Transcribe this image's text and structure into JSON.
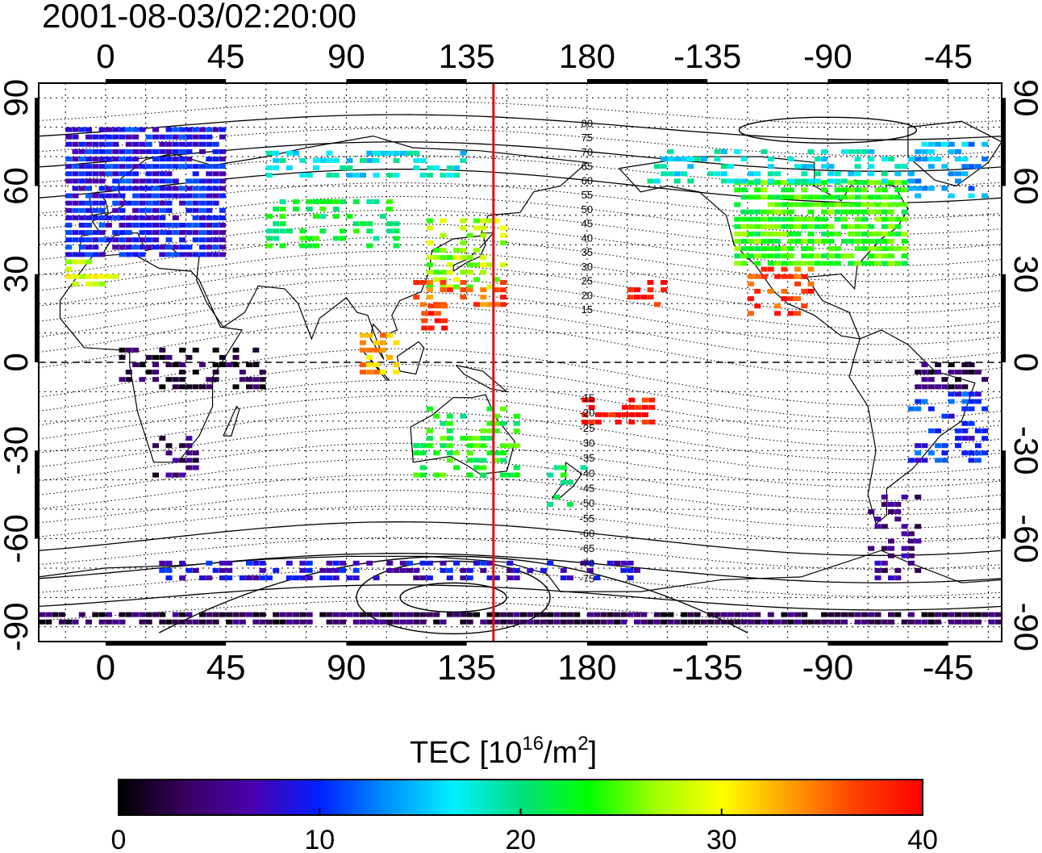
{
  "title": "2001-08-03/02:20:00",
  "map": {
    "lon_range": [
      -25,
      335
    ],
    "lat_range": [
      -95,
      95
    ],
    "top_lon_ticks": [
      "0",
      "45",
      "90",
      "135",
      "180",
      "-135",
      "-90",
      "-45"
    ],
    "bottom_lon_ticks": [
      "0",
      "45",
      "90",
      "135",
      "180",
      "-135",
      "-90",
      "-45"
    ],
    "tick_lon_values": [
      0,
      45,
      90,
      135,
      180,
      225,
      270,
      315
    ],
    "left_lat_ticks": [
      "90",
      "60",
      "30",
      "0",
      "-30",
      "-60",
      "-90"
    ],
    "right_lat_ticks": [
      "90",
      "60",
      "30",
      "0",
      "-30",
      "-60",
      "-90"
    ],
    "tick_lat_values": [
      90,
      60,
      30,
      0,
      -30,
      -60,
      -90
    ],
    "grid_lon_step": 15,
    "grid_lat_step": 10,
    "meridian_marker_lon": 145,
    "marker_color": "#e01010",
    "contour_labels_north": [
      "80",
      "75",
      "70",
      "65",
      "60",
      "55",
      "50",
      "45",
      "40",
      "35",
      "30",
      "25",
      "20",
      "15"
    ],
    "contour_label_lat_north": [
      80,
      75,
      70,
      65,
      60,
      55,
      50,
      45,
      40,
      35,
      30,
      25,
      20,
      15
    ],
    "contour_labels_south": [
      "-15",
      "-20",
      "-25",
      "-30",
      "-35",
      "-40",
      "-45",
      "-50",
      "-55",
      "-60",
      "-65",
      "-70",
      "-75"
    ],
    "contour_label_lat_south": [
      -15,
      -20,
      -25,
      -30,
      -35,
      -40,
      -45,
      -50,
      -55,
      -60,
      -65,
      -70,
      -75
    ]
  },
  "colorbar": {
    "label_main": "TEC  [10",
    "label_sup1": "16",
    "label_mid": "/m",
    "label_sup2": "2",
    "label_end": "]",
    "min": 0,
    "max": 40,
    "tick_labels": [
      "0",
      "10",
      "20",
      "30",
      "40"
    ],
    "tick_values": [
      0,
      10,
      20,
      30,
      40
    ],
    "colors": [
      "#000000",
      "#3a0060",
      "#4a00b0",
      "#0020ff",
      "#0090ff",
      "#00f0ff",
      "#00e080",
      "#00ff00",
      "#a0ff00",
      "#ffff00",
      "#ffa000",
      "#ff4000",
      "#ff0000"
    ]
  },
  "tec_regions": [
    {
      "name": "europe",
      "lon": [
        -15,
        45
      ],
      "lat": [
        35,
        80
      ],
      "tec": 9
    },
    {
      "name": "north-africa-coast",
      "lon": [
        -15,
        5
      ],
      "lat": [
        25,
        35
      ],
      "tec": 28
    },
    {
      "name": "central-asia",
      "lon": [
        60,
        110
      ],
      "lat": [
        38,
        55
      ],
      "tec": 22
    },
    {
      "name": "siberia-strip",
      "lon": [
        60,
        135
      ],
      "lat": [
        62,
        72
      ],
      "tec": 17
    },
    {
      "name": "japan-china",
      "lon": [
        120,
        150
      ],
      "lat": [
        24,
        48
      ],
      "tec": 27
    },
    {
      "name": "east-asia-south",
      "lon": [
        115,
        150
      ],
      "lat": [
        18,
        28
      ],
      "tec": 36
    },
    {
      "name": "philippines",
      "lon": [
        118,
        128
      ],
      "lat": [
        10,
        20
      ],
      "tec": 38
    },
    {
      "name": "indonesia",
      "lon": [
        95,
        110
      ],
      "lat": [
        -5,
        8
      ],
      "tec": 33
    },
    {
      "name": "north-america",
      "lon": [
        235,
        300
      ],
      "lat": [
        32,
        60
      ],
      "tec": 24
    },
    {
      "name": "mexico",
      "lon": [
        240,
        265
      ],
      "lat": [
        15,
        32
      ],
      "tec": 37
    },
    {
      "name": "hawaii",
      "lon": [
        195,
        210
      ],
      "lat": [
        18,
        28
      ],
      "tec": 39
    },
    {
      "name": "canada-north",
      "lon": [
        200,
        300
      ],
      "lat": [
        60,
        72
      ],
      "tec": 17
    },
    {
      "name": "greenland-edge",
      "lon": [
        300,
        330
      ],
      "lat": [
        55,
        75
      ],
      "tec": 14
    },
    {
      "name": "south-america-east",
      "lon": [
        300,
        330
      ],
      "lat": [
        -35,
        -10
      ],
      "tec": 10
    },
    {
      "name": "south-america-south",
      "lon": [
        285,
        305
      ],
      "lat": [
        -75,
        -45
      ],
      "tec": 5
    },
    {
      "name": "amazon",
      "lon": [
        300,
        330
      ],
      "lat": [
        -10,
        0
      ],
      "tec": 3
    },
    {
      "name": "africa-equator",
      "lon": [
        5,
        60
      ],
      "lat": [
        -10,
        5
      ],
      "tec": 2
    },
    {
      "name": "south-africa",
      "lon": [
        15,
        35
      ],
      "lat": [
        -40,
        -25
      ],
      "tec": 4
    },
    {
      "name": "australia",
      "lon": [
        115,
        155
      ],
      "lat": [
        -40,
        -15
      ],
      "tec": 23
    },
    {
      "name": "new-zealand",
      "lon": [
        165,
        180
      ],
      "lat": [
        -50,
        -35
      ],
      "tec": 21
    },
    {
      "name": "south-pacific-islands",
      "lon": [
        178,
        205
      ],
      "lat": [
        -22,
        -12
      ],
      "tec": 39
    },
    {
      "name": "antarctic-coast",
      "lon": [
        20,
        200
      ],
      "lat": [
        -75,
        -68
      ],
      "tec": 8
    },
    {
      "name": "antarctica-south",
      "lon": [
        -25,
        335
      ],
      "lat": [
        -90,
        -86
      ],
      "tec": 3
    }
  ]
}
